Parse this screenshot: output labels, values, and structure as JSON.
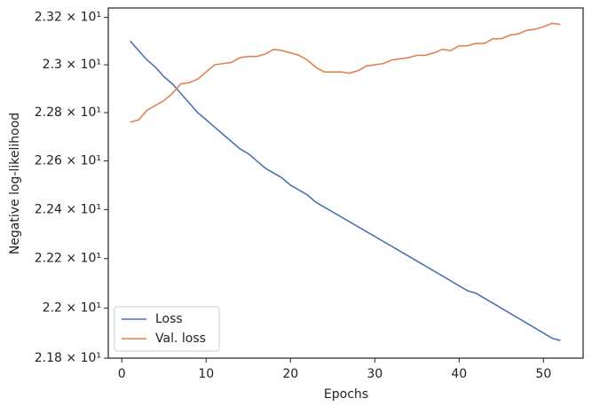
{
  "chart_data": {
    "type": "line",
    "xlabel": "Epochs",
    "ylabel": "Negative log-likelihood",
    "log_y": true,
    "legend": "lower left",
    "x": [
      1,
      2,
      3,
      4,
      5,
      6,
      7,
      8,
      9,
      10,
      11,
      12,
      13,
      14,
      15,
      16,
      17,
      18,
      19,
      20,
      21,
      22,
      23,
      24,
      25,
      26,
      27,
      28,
      29,
      30,
      31,
      32,
      33,
      34,
      35,
      36,
      37,
      38,
      39,
      40,
      41,
      42,
      43,
      44,
      45,
      46,
      47,
      48,
      49,
      50,
      51,
      52
    ],
    "series": [
      {
        "name": "Loss",
        "color": "#4c72b0",
        "values": [
          23.1,
          23.06,
          23.02,
          22.99,
          22.95,
          22.92,
          22.88,
          22.84,
          22.8,
          22.77,
          22.74,
          22.71,
          22.68,
          22.65,
          22.63,
          22.6,
          22.57,
          22.55,
          22.53,
          22.5,
          22.48,
          22.46,
          22.43,
          22.41,
          22.39,
          22.37,
          22.35,
          22.33,
          22.31,
          22.29,
          22.27,
          22.25,
          22.23,
          22.21,
          22.19,
          22.17,
          22.15,
          22.13,
          22.11,
          22.09,
          22.07,
          22.06,
          22.04,
          22.02,
          22.0,
          21.98,
          21.96,
          21.94,
          21.92,
          21.9,
          21.88,
          21.87
        ]
      },
      {
        "name": "Val. loss",
        "color": "#dd8452",
        "values": [
          22.76,
          22.77,
          22.81,
          22.83,
          22.85,
          22.88,
          22.92,
          22.925,
          22.94,
          22.97,
          23.0,
          23.005,
          23.01,
          23.03,
          23.035,
          23.035,
          23.045,
          23.065,
          23.06,
          23.05,
          23.04,
          23.02,
          22.99,
          22.97,
          22.97,
          22.97,
          22.965,
          22.975,
          22.995,
          23.0,
          23.005,
          23.02,
          23.025,
          23.03,
          23.04,
          23.04,
          23.05,
          23.065,
          23.06,
          23.08,
          23.08,
          23.09,
          23.09,
          23.11,
          23.11,
          23.125,
          23.13,
          23.145,
          23.15,
          23.16,
          23.175,
          23.17
        ]
      }
    ],
    "xlim": [
      -1.6,
      54.7
    ],
    "xticks": [
      0,
      10,
      20,
      30,
      40,
      50
    ],
    "ylim": [
      21.8,
      23.24
    ],
    "yticks": [
      {
        "value": 21.8,
        "label": "2.18 × 10¹"
      },
      {
        "value": 22.0,
        "label": "2.2 × 10¹"
      },
      {
        "value": 22.2,
        "label": "2.22 × 10¹"
      },
      {
        "value": 22.4,
        "label": "2.24 × 10¹"
      },
      {
        "value": 22.6,
        "label": "2.26 × 10¹"
      },
      {
        "value": 22.8,
        "label": "2.28 × 10¹"
      },
      {
        "value": 23.0,
        "label": "2.3 × 10¹"
      },
      {
        "value": 23.2,
        "label": "2.32 × 10¹"
      }
    ]
  }
}
